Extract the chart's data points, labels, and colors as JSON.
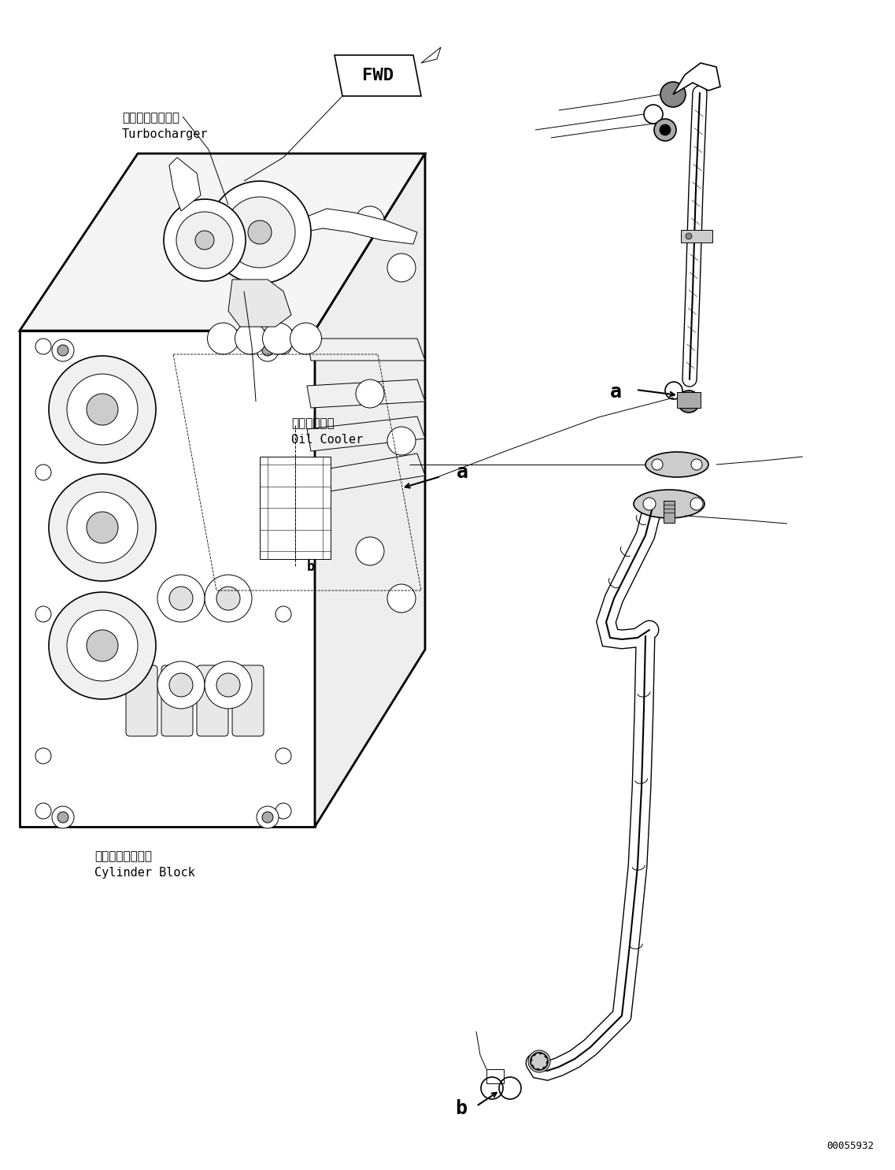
{
  "background_color": "#ffffff",
  "figure_width": 11.37,
  "figure_height": 14.86,
  "dpi": 100,
  "page_id": "00055932",
  "label_turbo_jp": "ターボチャージャ",
  "label_turbo_en": "Turbocharger",
  "label_oilcooler_jp": "オイルクーラ",
  "label_oilcooler_en": "Oil Cooler",
  "label_cylinder_jp": "シリンダブロック",
  "label_cylinder_en": "Cylinder Block",
  "label_fwd": "FWD",
  "label_a": "a",
  "label_b": "b"
}
